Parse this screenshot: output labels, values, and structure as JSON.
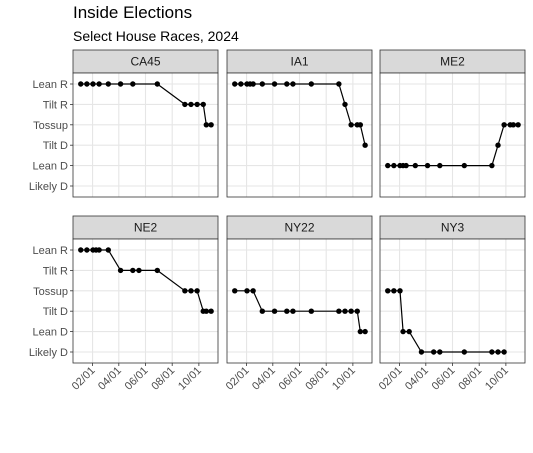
{
  "chart_data": {
    "type": "line",
    "title": "Inside Elections",
    "subtitle": "Select House Races, 2024",
    "xlabel": "",
    "ylabel": "",
    "y_categories": [
      "Likely D",
      "Lean D",
      "Tilt D",
      "Tossup",
      "Tilt R",
      "Lean R"
    ],
    "x_range": [
      "2024-01-01",
      "2024-10-31"
    ],
    "x_ticks": [
      {
        "date": "2024-02-01",
        "label": "02/01"
      },
      {
        "date": "2024-04-01",
        "label": "04/01"
      },
      {
        "date": "2024-06-01",
        "label": "06/01"
      },
      {
        "date": "2024-08-01",
        "label": "08/01"
      },
      {
        "date": "2024-10-01",
        "label": "10/01"
      }
    ],
    "grid": true,
    "layout": "facet 2x3",
    "series": [
      {
        "name": "CA45",
        "points": [
          {
            "x": "2024-01-05",
            "y": "Lean R"
          },
          {
            "x": "2024-01-19",
            "y": "Lean R"
          },
          {
            "x": "2024-02-02",
            "y": "Lean R"
          },
          {
            "x": "2024-02-16",
            "y": "Lean R"
          },
          {
            "x": "2024-03-08",
            "y": "Lean R"
          },
          {
            "x": "2024-04-05",
            "y": "Lean R"
          },
          {
            "x": "2024-05-03",
            "y": "Lean R"
          },
          {
            "x": "2024-06-28",
            "y": "Lean R"
          },
          {
            "x": "2024-08-30",
            "y": "Tilt R"
          },
          {
            "x": "2024-09-13",
            "y": "Tilt R"
          },
          {
            "x": "2024-09-27",
            "y": "Tilt R"
          },
          {
            "x": "2024-10-11",
            "y": "Tilt R"
          },
          {
            "x": "2024-10-18",
            "y": "Tossup"
          },
          {
            "x": "2024-10-29",
            "y": "Tossup"
          }
        ]
      },
      {
        "name": "IA1",
        "points": [
          {
            "x": "2024-01-05",
            "y": "Lean R"
          },
          {
            "x": "2024-01-19",
            "y": "Lean R"
          },
          {
            "x": "2024-02-02",
            "y": "Lean R"
          },
          {
            "x": "2024-02-09",
            "y": "Lean R"
          },
          {
            "x": "2024-02-16",
            "y": "Lean R"
          },
          {
            "x": "2024-03-08",
            "y": "Lean R"
          },
          {
            "x": "2024-04-05",
            "y": "Lean R"
          },
          {
            "x": "2024-05-03",
            "y": "Lean R"
          },
          {
            "x": "2024-05-17",
            "y": "Lean R"
          },
          {
            "x": "2024-06-28",
            "y": "Lean R"
          },
          {
            "x": "2024-08-30",
            "y": "Lean R"
          },
          {
            "x": "2024-09-13",
            "y": "Tilt R"
          },
          {
            "x": "2024-09-27",
            "y": "Tossup"
          },
          {
            "x": "2024-10-11",
            "y": "Tossup"
          },
          {
            "x": "2024-10-18",
            "y": "Tossup"
          },
          {
            "x": "2024-10-29",
            "y": "Tilt D"
          }
        ]
      },
      {
        "name": "ME2",
        "points": [
          {
            "x": "2024-01-05",
            "y": "Lean D"
          },
          {
            "x": "2024-01-19",
            "y": "Lean D"
          },
          {
            "x": "2024-02-02",
            "y": "Lean D"
          },
          {
            "x": "2024-02-09",
            "y": "Lean D"
          },
          {
            "x": "2024-02-16",
            "y": "Lean D"
          },
          {
            "x": "2024-03-08",
            "y": "Lean D"
          },
          {
            "x": "2024-04-05",
            "y": "Lean D"
          },
          {
            "x": "2024-05-03",
            "y": "Lean D"
          },
          {
            "x": "2024-06-28",
            "y": "Lean D"
          },
          {
            "x": "2024-08-30",
            "y": "Lean D"
          },
          {
            "x": "2024-09-13",
            "y": "Tilt D"
          },
          {
            "x": "2024-09-27",
            "y": "Tossup"
          },
          {
            "x": "2024-10-11",
            "y": "Tossup"
          },
          {
            "x": "2024-10-18",
            "y": "Tossup"
          },
          {
            "x": "2024-10-29",
            "y": "Tossup"
          }
        ]
      },
      {
        "name": "NE2",
        "points": [
          {
            "x": "2024-01-05",
            "y": "Lean R"
          },
          {
            "x": "2024-01-19",
            "y": "Lean R"
          },
          {
            "x": "2024-02-02",
            "y": "Lean R"
          },
          {
            "x": "2024-02-09",
            "y": "Lean R"
          },
          {
            "x": "2024-02-16",
            "y": "Lean R"
          },
          {
            "x": "2024-03-08",
            "y": "Lean R"
          },
          {
            "x": "2024-04-05",
            "y": "Tilt R"
          },
          {
            "x": "2024-05-03",
            "y": "Tilt R"
          },
          {
            "x": "2024-05-17",
            "y": "Tilt R"
          },
          {
            "x": "2024-06-28",
            "y": "Tilt R"
          },
          {
            "x": "2024-08-30",
            "y": "Tossup"
          },
          {
            "x": "2024-09-13",
            "y": "Tossup"
          },
          {
            "x": "2024-09-27",
            "y": "Tossup"
          },
          {
            "x": "2024-10-11",
            "y": "Tilt D"
          },
          {
            "x": "2024-10-18",
            "y": "Tilt D"
          },
          {
            "x": "2024-10-29",
            "y": "Tilt D"
          }
        ]
      },
      {
        "name": "NY22",
        "points": [
          {
            "x": "2024-01-05",
            "y": "Tossup"
          },
          {
            "x": "2024-02-02",
            "y": "Tossup"
          },
          {
            "x": "2024-02-16",
            "y": "Tossup"
          },
          {
            "x": "2024-03-08",
            "y": "Tilt D"
          },
          {
            "x": "2024-04-05",
            "y": "Tilt D"
          },
          {
            "x": "2024-05-03",
            "y": "Tilt D"
          },
          {
            "x": "2024-05-17",
            "y": "Tilt D"
          },
          {
            "x": "2024-06-28",
            "y": "Tilt D"
          },
          {
            "x": "2024-08-30",
            "y": "Tilt D"
          },
          {
            "x": "2024-09-13",
            "y": "Tilt D"
          },
          {
            "x": "2024-09-27",
            "y": "Tilt D"
          },
          {
            "x": "2024-10-11",
            "y": "Tilt D"
          },
          {
            "x": "2024-10-18",
            "y": "Lean D"
          },
          {
            "x": "2024-10-29",
            "y": "Lean D"
          }
        ]
      },
      {
        "name": "NY3",
        "points": [
          {
            "x": "2024-01-05",
            "y": "Tossup"
          },
          {
            "x": "2024-01-19",
            "y": "Tossup"
          },
          {
            "x": "2024-02-02",
            "y": "Tossup"
          },
          {
            "x": "2024-02-09",
            "y": "Lean D"
          },
          {
            "x": "2024-02-23",
            "y": "Lean D"
          },
          {
            "x": "2024-03-22",
            "y": "Likely D"
          },
          {
            "x": "2024-04-19",
            "y": "Likely D"
          },
          {
            "x": "2024-05-03",
            "y": "Likely D"
          },
          {
            "x": "2024-06-28",
            "y": "Likely D"
          },
          {
            "x": "2024-08-30",
            "y": "Likely D"
          },
          {
            "x": "2024-09-13",
            "y": "Likely D"
          },
          {
            "x": "2024-09-27",
            "y": "Likely D"
          }
        ]
      }
    ]
  }
}
